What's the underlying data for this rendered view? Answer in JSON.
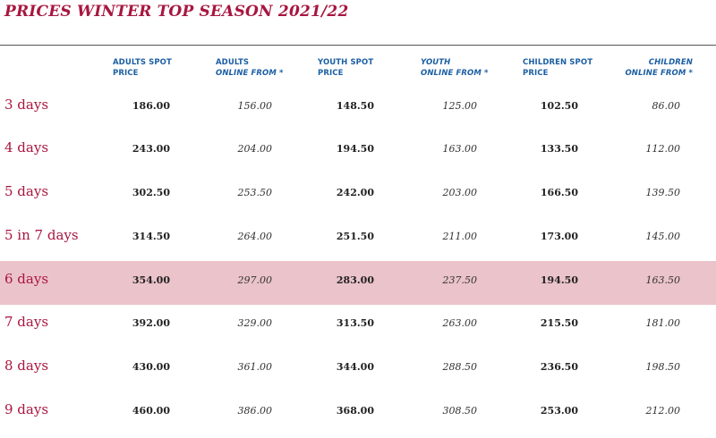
{
  "title": "PRICES WINTER TOP SEASON 2021/22",
  "headers": [
    {
      "line1": "ADULTS SPOT",
      "line2": "PRICE"
    },
    {
      "line1": "ADULTS",
      "line2": "ONLINE FROM *"
    },
    {
      "line1": "YOUTH SPOT",
      "line2": "PRICE"
    },
    {
      "line1": "YOUTH",
      "line2": "ONLINE FROM *"
    },
    {
      "line1": "CHILDREN SPOT",
      "line2": "PRICE"
    },
    {
      "line1": "CHILDREN",
      "line2": "ONLINE FROM *"
    }
  ],
  "rows": [
    {
      "label": "3 days",
      "cells": [
        "186.00",
        "156.00",
        "148.50",
        "125.00",
        "102.50",
        "86.00"
      ]
    },
    {
      "label": "4 days",
      "cells": [
        "243.00",
        "204.00",
        "194.50",
        "163.00",
        "133.50",
        "112.00"
      ]
    },
    {
      "label": "5 days",
      "cells": [
        "302.50",
        "253.50",
        "242.00",
        "203.00",
        "166.50",
        "139.50"
      ]
    },
    {
      "label": "5 in 7 days",
      "cells": [
        "314.50",
        "264.00",
        "251.50",
        "211.00",
        "173.00",
        "145.00"
      ]
    },
    {
      "label": "6 days",
      "cells": [
        "354.00",
        "297.00",
        "283.00",
        "237.50",
        "194.50",
        "163.50"
      ]
    },
    {
      "label": "7 days",
      "cells": [
        "392.00",
        "329.00",
        "313.50",
        "263.00",
        "215.50",
        "181.00"
      ]
    },
    {
      "label": "8 days",
      "cells": [
        "430.00",
        "361.00",
        "344.00",
        "288.50",
        "236.50",
        "198.50"
      ]
    },
    {
      "label": "9 days",
      "cells": [
        "460.00",
        "386.00",
        "368.00",
        "308.50",
        "253.00",
        "212.00"
      ]
    }
  ],
  "highlight_row": "6 days",
  "colors": {
    "title": "#a8163f",
    "header": "#1c5fa3",
    "highlight": "#ebc3ca"
  }
}
